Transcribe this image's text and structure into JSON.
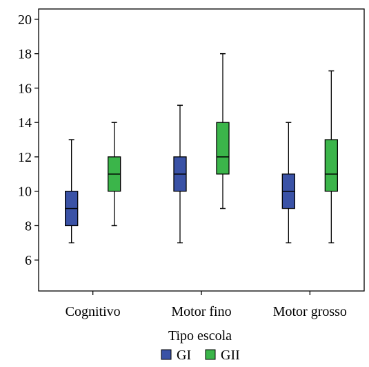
{
  "chart_data": {
    "type": "boxplot",
    "title": "",
    "xlabel": "Tipo escola",
    "ylabel": "",
    "ylim": [
      4.2,
      20.6
    ],
    "yticks": [
      6,
      8,
      10,
      12,
      14,
      16,
      18,
      20
    ],
    "yticklabels": [
      "6",
      "8",
      "10",
      "12",
      "14",
      "16",
      "18",
      "20"
    ],
    "categories": [
      "Cognitivo",
      "Motor fino",
      "Motor grosso"
    ],
    "grid": false,
    "legend_position": "bottom",
    "series": [
      {
        "name": "GI",
        "color": "#3a52a6",
        "boxes": [
          {
            "min": 7,
            "q1": 8,
            "median": 9,
            "q3": 10,
            "max": 13
          },
          {
            "min": 7,
            "q1": 10,
            "median": 11,
            "q3": 12,
            "max": 15
          },
          {
            "min": 7,
            "q1": 9,
            "median": 10,
            "q3": 11,
            "max": 14
          }
        ]
      },
      {
        "name": "GII",
        "color": "#3bb54a",
        "boxes": [
          {
            "min": 8,
            "q1": 10,
            "median": 11,
            "q3": 12,
            "max": 14
          },
          {
            "min": 9,
            "q1": 11,
            "median": 12,
            "q3": 14,
            "max": 18
          },
          {
            "min": 7,
            "q1": 10,
            "median": 11,
            "q3": 13,
            "max": 17
          }
        ]
      }
    ]
  }
}
